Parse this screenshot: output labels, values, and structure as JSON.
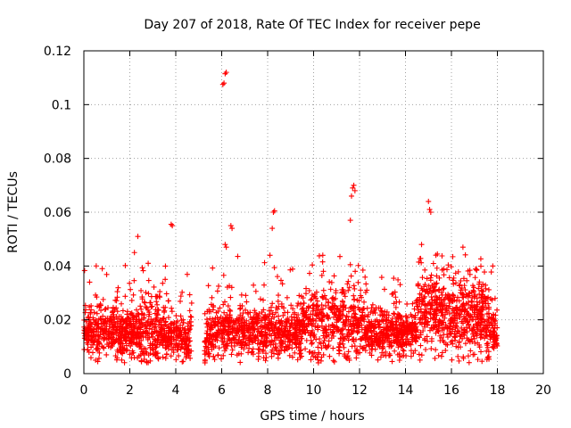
{
  "chart_data": {
    "type": "scatter",
    "title": "Day 207 of 2018, Rate Of TEC Index for receiver pepe",
    "xlabel": "GPS time / hours",
    "ylabel": "ROTI / TECUs",
    "xlim": [
      0,
      20
    ],
    "ylim": [
      0,
      0.12
    ],
    "x_ticks": [
      "0",
      "2",
      "4",
      "6",
      "8",
      "10",
      "12",
      "14",
      "16",
      "18",
      "20"
    ],
    "y_ticks": [
      "0",
      "0.02",
      "0.04",
      "0.06",
      "0.08",
      "0.1",
      "0.12"
    ],
    "grid": true,
    "marker": "+",
    "color": "#ff0000",
    "data_range_hours": [
      0,
      18
    ],
    "outliers": [
      {
        "x": 0.25,
        "y": 0.034
      },
      {
        "x": 0.8,
        "y": 0.039
      },
      {
        "x": 2.2,
        "y": 0.045
      },
      {
        "x": 2.35,
        "y": 0.051
      },
      {
        "x": 2.8,
        "y": 0.041
      },
      {
        "x": 3.8,
        "y": 0.0555
      },
      {
        "x": 3.85,
        "y": 0.055
      },
      {
        "x": 6.05,
        "y": 0.1075
      },
      {
        "x": 6.1,
        "y": 0.108
      },
      {
        "x": 6.15,
        "y": 0.1115
      },
      {
        "x": 6.2,
        "y": 0.112
      },
      {
        "x": 6.15,
        "y": 0.048
      },
      {
        "x": 6.2,
        "y": 0.047
      },
      {
        "x": 6.4,
        "y": 0.055
      },
      {
        "x": 6.45,
        "y": 0.054
      },
      {
        "x": 8.1,
        "y": 0.044
      },
      {
        "x": 8.2,
        "y": 0.054
      },
      {
        "x": 8.25,
        "y": 0.06
      },
      {
        "x": 8.3,
        "y": 0.0605
      },
      {
        "x": 10.4,
        "y": 0.044
      },
      {
        "x": 11.6,
        "y": 0.057
      },
      {
        "x": 11.65,
        "y": 0.066
      },
      {
        "x": 11.7,
        "y": 0.069
      },
      {
        "x": 11.75,
        "y": 0.07
      },
      {
        "x": 11.8,
        "y": 0.068
      },
      {
        "x": 14.7,
        "y": 0.048
      },
      {
        "x": 15.0,
        "y": 0.064
      },
      {
        "x": 15.05,
        "y": 0.061
      },
      {
        "x": 15.1,
        "y": 0.06
      },
      {
        "x": 16.5,
        "y": 0.047
      },
      {
        "x": 17.8,
        "y": 0.04
      }
    ]
  }
}
